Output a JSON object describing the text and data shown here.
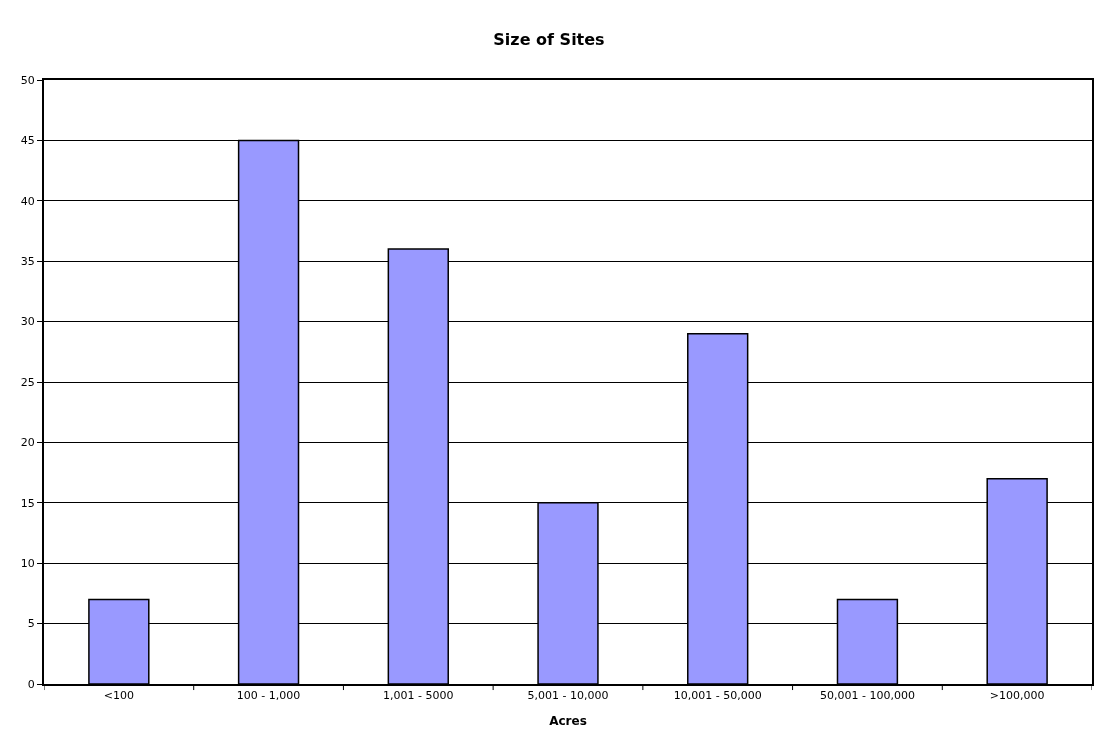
{
  "chart_data": {
    "type": "bar",
    "title": "Size of Sites",
    "xlabel": "Acres",
    "categories": [
      "<100",
      "100 - 1,000",
      "1,001 - 5000",
      "5,001 - 10,000",
      "10,001 - 50,000",
      "50,001 - 100,000",
      ">100,000"
    ],
    "values": [
      7,
      45,
      36,
      15,
      29,
      7,
      17
    ],
    "color": "#9999ff",
    "ylim": [
      0,
      50
    ],
    "yticks": [
      0,
      5,
      10,
      15,
      20,
      25,
      30,
      35,
      40,
      45,
      50
    ],
    "grid": "y",
    "legend": false
  }
}
